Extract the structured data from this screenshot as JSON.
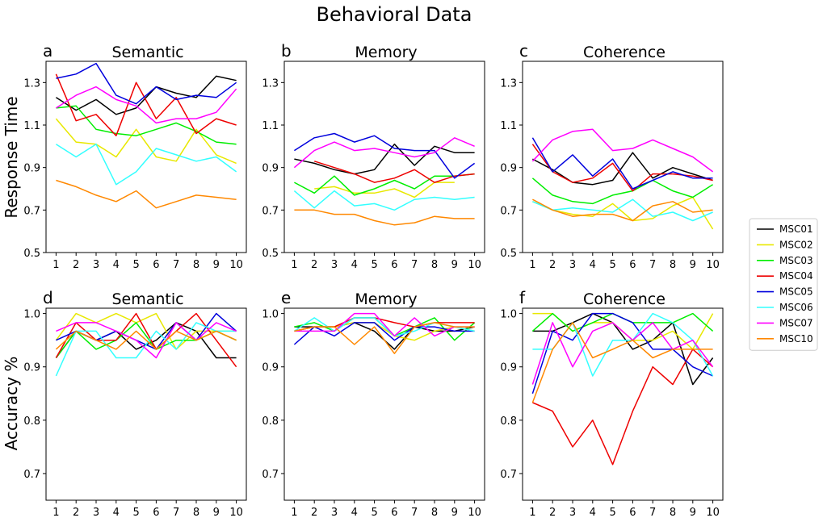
{
  "figure": {
    "title": "Behavioral Data",
    "row_ylabels": [
      "Response Time",
      "Accuracy %"
    ]
  },
  "legend": {
    "placement": "right",
    "entries": [
      {
        "name": "MSC01",
        "color": "#000000"
      },
      {
        "name": "MSC02",
        "color": "#e8e800"
      },
      {
        "name": "MSC03",
        "color": "#00ee00"
      },
      {
        "name": "MSC04",
        "color": "#ee0000"
      },
      {
        "name": "MSC05",
        "color": "#0000dd"
      },
      {
        "name": "MSC06",
        "color": "#33ffff"
      },
      {
        "name": "MSC07",
        "color": "#ff00ff"
      },
      {
        "name": "MSC10",
        "color": "#ff8800"
      }
    ]
  },
  "chart_data": [
    {
      "type": "line",
      "panel": "a",
      "title": "Semantic",
      "x": [
        1,
        2,
        3,
        4,
        5,
        6,
        7,
        8,
        9,
        10
      ],
      "ylim": [
        0.5,
        1.4
      ],
      "yticks": [
        0.5,
        0.7,
        0.9,
        1.1,
        1.3
      ],
      "series": [
        {
          "name": "MSC01",
          "values": [
            1.23,
            1.17,
            1.22,
            1.15,
            1.18,
            1.28,
            1.25,
            1.23,
            1.33,
            1.31
          ]
        },
        {
          "name": "MSC02",
          "values": [
            1.13,
            1.02,
            1.01,
            0.95,
            1.08,
            0.95,
            0.93,
            1.08,
            0.96,
            0.92
          ]
        },
        {
          "name": "MSC03",
          "values": [
            1.18,
            1.19,
            1.08,
            1.06,
            1.05,
            1.08,
            1.11,
            1.07,
            1.02,
            1.01
          ]
        },
        {
          "name": "MSC04",
          "values": [
            1.34,
            1.12,
            1.15,
            1.05,
            1.3,
            1.13,
            1.23,
            1.06,
            1.13,
            1.1
          ]
        },
        {
          "name": "MSC05",
          "values": [
            1.32,
            1.34,
            1.39,
            1.24,
            1.2,
            1.28,
            1.22,
            1.24,
            1.23,
            1.3
          ]
        },
        {
          "name": "MSC06",
          "values": [
            1.01,
            0.95,
            1.01,
            0.82,
            0.88,
            0.99,
            0.96,
            0.93,
            0.95,
            0.88
          ]
        },
        {
          "name": "MSC07",
          "values": [
            1.18,
            1.24,
            1.28,
            1.22,
            1.19,
            1.11,
            1.13,
            1.13,
            1.16,
            1.27
          ]
        },
        {
          "name": "MSC10",
          "values": [
            0.84,
            0.81,
            0.77,
            0.74,
            0.79,
            0.71,
            0.74,
            0.77,
            0.76,
            0.75
          ]
        }
      ]
    },
    {
      "type": "line",
      "panel": "b",
      "title": "Memory",
      "x": [
        1,
        2,
        3,
        4,
        5,
        6,
        7,
        8,
        9,
        10
      ],
      "ylim": [
        0.5,
        1.4
      ],
      "yticks": [
        0.5,
        0.7,
        0.9,
        1.1,
        1.3
      ],
      "series": [
        {
          "name": "MSC01",
          "values": [
            0.94,
            0.92,
            0.89,
            0.87,
            0.89,
            1.01,
            0.91,
            1.0,
            0.97,
            0.97
          ]
        },
        {
          "name": "MSC02",
          "values": [
            null,
            0.8,
            0.81,
            0.78,
            0.78,
            0.8,
            0.76,
            0.83,
            0.83,
            null
          ]
        },
        {
          "name": "MSC03",
          "values": [
            0.83,
            0.78,
            0.86,
            0.77,
            0.8,
            0.84,
            0.8,
            0.86,
            0.86,
            0.87
          ]
        },
        {
          "name": "MSC04",
          "values": [
            null,
            0.93,
            0.9,
            0.87,
            0.83,
            0.85,
            0.89,
            0.83,
            0.86,
            0.87
          ]
        },
        {
          "name": "MSC05",
          "values": [
            0.98,
            1.04,
            1.06,
            1.02,
            1.05,
            0.99,
            0.98,
            0.98,
            0.85,
            0.92
          ]
        },
        {
          "name": "MSC06",
          "values": [
            0.79,
            0.71,
            0.79,
            0.72,
            0.73,
            0.7,
            0.75,
            0.76,
            0.75,
            0.76
          ]
        },
        {
          "name": "MSC07",
          "values": [
            0.9,
            0.98,
            1.02,
            0.98,
            0.99,
            0.97,
            0.95,
            0.97,
            1.04,
            1.0
          ]
        },
        {
          "name": "MSC10",
          "values": [
            0.7,
            0.7,
            0.68,
            0.68,
            0.65,
            0.63,
            0.64,
            0.67,
            0.66,
            0.66
          ]
        }
      ]
    },
    {
      "type": "line",
      "panel": "c",
      "title": "Coherence",
      "x": [
        1,
        2,
        3,
        4,
        5,
        6,
        7,
        8,
        9,
        10
      ],
      "ylim": [
        0.5,
        1.4
      ],
      "yticks": [
        0.5,
        0.7,
        0.9,
        1.1,
        1.3
      ],
      "series": [
        {
          "name": "MSC01",
          "values": [
            0.94,
            0.89,
            0.83,
            0.82,
            0.84,
            0.97,
            0.85,
            0.9,
            0.87,
            0.84
          ]
        },
        {
          "name": "MSC02",
          "values": [
            0.74,
            0.7,
            0.68,
            0.67,
            0.73,
            0.65,
            0.66,
            0.72,
            0.76,
            0.61
          ]
        },
        {
          "name": "MSC03",
          "values": [
            0.85,
            0.77,
            0.74,
            0.73,
            0.77,
            0.79,
            0.84,
            0.79,
            0.76,
            0.82
          ]
        },
        {
          "name": "MSC04",
          "values": [
            1.01,
            0.88,
            0.83,
            0.85,
            0.92,
            0.79,
            0.87,
            0.87,
            0.86,
            0.84
          ]
        },
        {
          "name": "MSC05",
          "values": [
            1.04,
            0.88,
            0.96,
            0.86,
            0.94,
            0.8,
            0.84,
            0.88,
            0.85,
            0.85
          ]
        },
        {
          "name": "MSC06",
          "values": [
            0.74,
            0.7,
            0.71,
            0.7,
            0.69,
            0.75,
            0.67,
            0.69,
            0.65,
            0.69
          ]
        },
        {
          "name": "MSC07",
          "values": [
            0.93,
            1.03,
            1.07,
            1.08,
            0.98,
            0.99,
            1.03,
            0.99,
            0.95,
            0.88
          ]
        },
        {
          "name": "MSC10",
          "values": [
            0.75,
            0.7,
            0.67,
            0.68,
            0.68,
            0.65,
            0.72,
            0.74,
            0.69,
            0.7
          ]
        }
      ]
    },
    {
      "type": "line",
      "panel": "d",
      "title": "Semantic",
      "x": [
        1,
        2,
        3,
        4,
        5,
        6,
        7,
        8,
        9,
        10
      ],
      "ylim": [
        0.65,
        1.01
      ],
      "yticks": [
        0.7,
        0.8,
        0.9,
        1.0
      ],
      "series": [
        {
          "name": "MSC01",
          "values": [
            0.917,
            0.967,
            0.95,
            0.967,
            0.933,
            0.95,
            0.983,
            0.967,
            0.917,
            0.917
          ]
        },
        {
          "name": "MSC02",
          "values": [
            0.95,
            1.0,
            0.983,
            1.0,
            0.983,
            1.0,
            0.933,
            0.967,
            0.967,
            0.967
          ]
        },
        {
          "name": "MSC03",
          "values": [
            0.917,
            0.967,
            0.933,
            0.95,
            0.983,
            0.933,
            0.95,
            0.95,
            0.967,
            0.95
          ]
        },
        {
          "name": "MSC04",
          "values": [
            0.917,
            0.983,
            0.95,
            0.95,
            1.0,
            0.933,
            0.967,
            1.0,
            0.95,
            0.9
          ]
        },
        {
          "name": "MSC05",
          "values": [
            0.95,
            0.967,
            0.95,
            0.967,
            0.95,
            0.933,
            0.983,
            0.95,
            1.0,
            0.967
          ]
        },
        {
          "name": "MSC06",
          "values": [
            0.883,
            0.967,
            0.967,
            0.917,
            0.917,
            0.967,
            0.933,
            0.983,
            0.967,
            0.967
          ]
        },
        {
          "name": "MSC07",
          "values": [
            0.967,
            0.983,
            0.983,
            0.967,
            0.95,
            0.917,
            0.983,
            0.95,
            0.983,
            0.967
          ]
        },
        {
          "name": "MSC10",
          "values": [
            0.933,
            0.967,
            0.95,
            0.933,
            0.967,
            0.933,
            0.967,
            0.95,
            0.967,
            0.95
          ]
        }
      ]
    },
    {
      "type": "line",
      "panel": "e",
      "title": "Memory",
      "x": [
        1,
        2,
        3,
        4,
        5,
        6,
        7,
        8,
        9,
        10
      ],
      "ylim": [
        0.65,
        1.01
      ],
      "yticks": [
        0.7,
        0.8,
        0.9,
        1.0
      ],
      "series": [
        {
          "name": "MSC01",
          "values": [
            0.975,
            0.975,
            0.975,
            0.983,
            0.967,
            0.933,
            0.975,
            0.967,
            0.967,
            0.975
          ]
        },
        {
          "name": "MSC02",
          "values": [
            0.967,
            0.975,
            0.975,
            0.983,
            0.983,
            0.958,
            0.95,
            0.967,
            0.975,
            0.967
          ]
        },
        {
          "name": "MSC03",
          "values": [
            0.975,
            0.983,
            0.967,
            0.992,
            0.992,
            0.958,
            0.975,
            0.992,
            0.95,
            0.983
          ]
        },
        {
          "name": "MSC04",
          "values": [
            0.967,
            0.975,
            0.975,
            0.992,
            0.992,
            0.983,
            0.975,
            0.983,
            0.983,
            0.983
          ]
        },
        {
          "name": "MSC05",
          "values": [
            0.942,
            0.975,
            0.958,
            0.983,
            0.983,
            0.95,
            0.975,
            0.975,
            0.967,
            0.967
          ]
        },
        {
          "name": "MSC06",
          "values": [
            0.967,
            0.992,
            0.967,
            0.992,
            0.992,
            0.958,
            0.967,
            0.983,
            0.975,
            0.967
          ]
        },
        {
          "name": "MSC07",
          "values": [
            0.967,
            0.967,
            0.967,
            1.0,
            1.0,
            0.958,
            0.992,
            0.958,
            0.975,
            0.975
          ]
        },
        {
          "name": "MSC10",
          "values": [
            0.967,
            0.975,
            0.975,
            0.942,
            0.975,
            0.925,
            0.975,
            0.983,
            0.975,
            0.975
          ]
        }
      ]
    },
    {
      "type": "line",
      "panel": "f",
      "title": "Coherence",
      "x": [
        1,
        2,
        3,
        4,
        5,
        6,
        7,
        8,
        9,
        10
      ],
      "ylim": [
        0.65,
        1.01
      ],
      "yticks": [
        0.7,
        0.8,
        0.9,
        1.0
      ],
      "series": [
        {
          "name": "MSC01",
          "values": [
            0.967,
            0.967,
            0.983,
            1.0,
            0.983,
            0.933,
            0.95,
            0.983,
            0.867,
            0.917
          ]
        },
        {
          "name": "MSC02",
          "values": [
            1.0,
            1.0,
            0.967,
            0.983,
            0.983,
            0.95,
            0.95,
            0.967,
            0.933,
            1.0
          ]
        },
        {
          "name": "MSC03",
          "values": [
            0.967,
            1.0,
            0.967,
            0.983,
            1.0,
            0.983,
            0.983,
            0.983,
            1.0,
            0.967
          ]
        },
        {
          "name": "MSC04",
          "values": [
            0.833,
            0.817,
            0.75,
            0.8,
            0.717,
            0.817,
            0.9,
            0.867,
            0.933,
            0.9
          ]
        },
        {
          "name": "MSC05",
          "values": [
            0.85,
            0.967,
            0.95,
            1.0,
            1.0,
            0.983,
            0.933,
            0.933,
            0.9,
            0.883
          ]
        },
        {
          "name": "MSC06",
          "values": [
            0.933,
            0.933,
            0.983,
            0.883,
            0.95,
            0.95,
            1.0,
            0.983,
            0.95,
            0.883
          ]
        },
        {
          "name": "MSC07",
          "values": [
            0.867,
            0.983,
            0.9,
            0.967,
            0.983,
            0.95,
            0.983,
            0.933,
            0.95,
            0.9
          ]
        },
        {
          "name": "MSC10",
          "values": [
            0.833,
            0.933,
            0.983,
            0.917,
            0.933,
            0.95,
            0.917,
            0.933,
            0.933,
            0.933
          ]
        }
      ]
    }
  ]
}
